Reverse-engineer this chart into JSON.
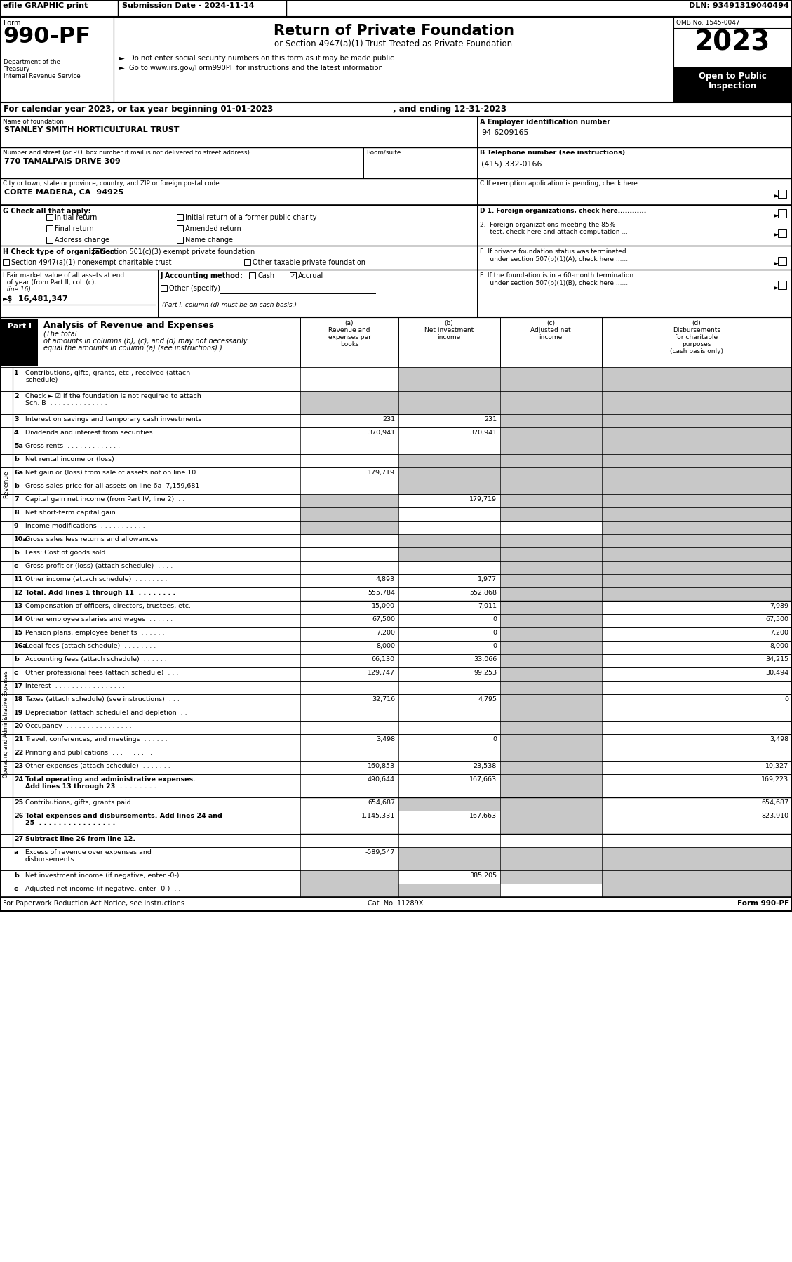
{
  "efile": "efile GRAPHIC print",
  "submission": "Submission Date - 2024-11-14",
  "dln": "DLN: 93491319040494",
  "form_number": "990-PF",
  "dept_lines": [
    "Department of the",
    "Treasury",
    "Internal Revenue Service"
  ],
  "title": "Return of Private Foundation",
  "subtitle": "or Section 4947(a)(1) Trust Treated as Private Foundation",
  "bullet1": "►  Do not enter social security numbers on this form as it may be made public.",
  "bullet2": "►  Go to www.irs.gov/Form990PF for instructions and the latest information.",
  "omb": "OMB No. 1545-0047",
  "year": "2023",
  "open_public": "Open to Public",
  "inspection": "Inspection",
  "cal_year": "For calendar year 2023, or tax year beginning 01-01-2023",
  "cal_end": ", and ending 12-31-2023",
  "name_label": "Name of foundation",
  "name_value": "STANLEY SMITH HORTICULTURAL TRUST",
  "ein_label": "A Employer identification number",
  "ein_value": "94-6209165",
  "street_label": "Number and street (or P.O. box number if mail is not delivered to street address)",
  "street_value": "770 TAMALPAIS DRIVE 309",
  "room_label": "Room/suite",
  "phone_label": "B Telephone number (see instructions)",
  "phone_value": "(415) 332-0166",
  "city_label": "City or town, state or province, country, and ZIP or foreign postal code",
  "city_value": "CORTE MADERA, CA  94925",
  "c_label": "C If exemption application is pending, check here",
  "g_label": "G Check all that apply:",
  "g_col1": [
    "Initial return",
    "Final return",
    "Address change"
  ],
  "g_col2": [
    "Initial return of a former public charity",
    "Amended return",
    "Name change"
  ],
  "d1": "D 1. Foreign organizations, check here............",
  "d2a": "2.  Foreign organizations meeting the 85%",
  "d2b": "     test, check here and attach computation ...",
  "e1": "E  If private foundation status was terminated",
  "e2": "     under section 507(b)(1)(A), check here ......",
  "h_label": "H Check type of organization:",
  "h_check1": "Section 501(c)(3) exempt private foundation",
  "h_check2": "Section 4947(a)(1) nonexempt charitable trust",
  "h_check3": "Other taxable private foundation",
  "i1": "I Fair market value of all assets at end",
  "i2": "  of year (from Part II, col. (c),",
  "i3": "  line 16)",
  "i_arrow": "►$",
  "i_value": " 16,481,347",
  "j_label": "J Accounting method:",
  "j_cash": "Cash",
  "j_accrual": "Accrual",
  "j_other": "Other (specify)",
  "j_note": "(Part I, column (d) must be on cash basis.)",
  "f1": "F  If the foundation is in a 60-month termination",
  "f2": "     under section 507(b)(1)(B), check here ......",
  "part1_tag": "Part I",
  "part1_title": "Analysis of Revenue and Expenses",
  "part1_italic": "(The total of amounts in columns (b), (c), and (d) may not necessarily equal the amounts in column (a) (see instructions).)",
  "rows": [
    {
      "num": "1",
      "label": "Contributions, gifts, grants, etc., received (attach\nschedule)",
      "a": "",
      "b": "",
      "c": "",
      "d": "",
      "shade": [
        "b",
        "c",
        "d"
      ],
      "bold": false,
      "two_line": true
    },
    {
      "num": "2",
      "label": "Check ► ☑ if the foundation is not required to attach\nSch. B  . . . . . . . . . . . . . .",
      "a": "",
      "b": "",
      "c": "",
      "d": "",
      "shade": [
        "a",
        "b",
        "c",
        "d"
      ],
      "bold": false,
      "two_line": true
    },
    {
      "num": "3",
      "label": "Interest on savings and temporary cash investments",
      "a": "231",
      "b": "231",
      "c": "",
      "d": "",
      "shade": [
        "c",
        "d"
      ],
      "bold": false
    },
    {
      "num": "4",
      "label": "Dividends and interest from securities  . . .",
      "a": "370,941",
      "b": "370,941",
      "c": "",
      "d": "",
      "shade": [
        "c",
        "d"
      ],
      "bold": false
    },
    {
      "num": "5a",
      "label": "Gross rents  . . . . . . . . . . . . .",
      "a": "",
      "b": "",
      "c": "",
      "d": "",
      "shade": [
        "c",
        "d"
      ],
      "bold": false
    },
    {
      "num": "b",
      "label": "Net rental income or (loss)",
      "a": "",
      "b": "",
      "c": "",
      "d": "",
      "shade": [
        "b",
        "c",
        "d"
      ],
      "bold": false
    },
    {
      "num": "6a",
      "label": "Net gain or (loss) from sale of assets not on line 10",
      "a": "179,719",
      "b": "",
      "c": "",
      "d": "",
      "shade": [
        "b",
        "c",
        "d"
      ],
      "bold": false
    },
    {
      "num": "b",
      "label": "Gross sales price for all assets on line 6a  7,159,681",
      "a": "",
      "b": "",
      "c": "",
      "d": "",
      "shade": [
        "b",
        "c",
        "d"
      ],
      "bold": false
    },
    {
      "num": "7",
      "label": "Capital gain net income (from Part IV, line 2)  . .",
      "a": "",
      "b": "179,719",
      "c": "",
      "d": "",
      "shade": [
        "a",
        "c",
        "d"
      ],
      "bold": false
    },
    {
      "num": "8",
      "label": "Net short-term capital gain  . . . . . . . . . .",
      "a": "",
      "b": "",
      "c": "",
      "d": "",
      "shade": [
        "a",
        "c",
        "d"
      ],
      "bold": false
    },
    {
      "num": "9",
      "label": "Income modifications  . . . . . . . . . . .",
      "a": "",
      "b": "",
      "c": "",
      "d": "",
      "shade": [
        "a",
        "d"
      ],
      "bold": false
    },
    {
      "num": "10a",
      "label": "Gross sales less returns and allowances",
      "a": "",
      "b": "",
      "c": "",
      "d": "",
      "shade": [
        "b",
        "c",
        "d"
      ],
      "bold": false
    },
    {
      "num": "b",
      "label": "Less: Cost of goods sold  . . . .",
      "a": "",
      "b": "",
      "c": "",
      "d": "",
      "shade": [
        "b",
        "c",
        "d"
      ],
      "bold": false
    },
    {
      "num": "c",
      "label": "Gross profit or (loss) (attach schedule)  . . . .",
      "a": "",
      "b": "",
      "c": "",
      "d": "",
      "shade": [
        "c",
        "d"
      ],
      "bold": false
    },
    {
      "num": "11",
      "label": "Other income (attach schedule)  . . . . . . . .",
      "a": "4,893",
      "b": "1,977",
      "c": "",
      "d": "",
      "shade": [
        "c",
        "d"
      ],
      "bold": false
    },
    {
      "num": "12",
      "label": "Total. Add lines 1 through 11  . . . . . . . .",
      "a": "555,784",
      "b": "552,868",
      "c": "",
      "d": "",
      "shade": [
        "c",
        "d"
      ],
      "bold": true
    },
    {
      "num": "13",
      "label": "Compensation of officers, directors, trustees, etc.",
      "a": "15,000",
      "b": "7,011",
      "c": "",
      "d": "7,989",
      "shade": [
        "c"
      ],
      "bold": false
    },
    {
      "num": "14",
      "label": "Other employee salaries and wages  . . . . . .",
      "a": "67,500",
      "b": "0",
      "c": "",
      "d": "67,500",
      "shade": [
        "c"
      ],
      "bold": false
    },
    {
      "num": "15",
      "label": "Pension plans, employee benefits  . . . . . .",
      "a": "7,200",
      "b": "0",
      "c": "",
      "d": "7,200",
      "shade": [
        "c"
      ],
      "bold": false
    },
    {
      "num": "16a",
      "label": "Legal fees (attach schedule)  . . . . . . . .",
      "a": "8,000",
      "b": "0",
      "c": "",
      "d": "8,000",
      "shade": [
        "c"
      ],
      "bold": false
    },
    {
      "num": "b",
      "label": "Accounting fees (attach schedule)  . . . . . .",
      "a": "66,130",
      "b": "33,066",
      "c": "",
      "d": "34,215",
      "shade": [
        "c"
      ],
      "bold": false
    },
    {
      "num": "c",
      "label": "Other professional fees (attach schedule)  . . .",
      "a": "129,747",
      "b": "99,253",
      "c": "",
      "d": "30,494",
      "shade": [
        "c"
      ],
      "bold": false
    },
    {
      "num": "17",
      "label": "Interest  . . . . . . . . . . . . . . . . .",
      "a": "",
      "b": "",
      "c": "",
      "d": "",
      "shade": [
        "c"
      ],
      "bold": false
    },
    {
      "num": "18",
      "label": "Taxes (attach schedule) (see instructions)  . . .",
      "a": "32,716",
      "b": "4,795",
      "c": "",
      "d": "0",
      "shade": [
        "c"
      ],
      "bold": false
    },
    {
      "num": "19",
      "label": "Depreciation (attach schedule) and depletion  . .",
      "a": "",
      "b": "",
      "c": "",
      "d": "",
      "shade": [
        "c"
      ],
      "bold": false
    },
    {
      "num": "20",
      "label": "Occupancy  . . . . . . . . . . . . . . . .",
      "a": "",
      "b": "",
      "c": "",
      "d": "",
      "shade": [
        "c"
      ],
      "bold": false
    },
    {
      "num": "21",
      "label": "Travel, conferences, and meetings  . . . . . .",
      "a": "3,498",
      "b": "0",
      "c": "",
      "d": "3,498",
      "shade": [
        "c"
      ],
      "bold": false
    },
    {
      "num": "22",
      "label": "Printing and publications  . . . . . . . . . .",
      "a": "",
      "b": "",
      "c": "",
      "d": "",
      "shade": [
        "c"
      ],
      "bold": false
    },
    {
      "num": "23",
      "label": "Other expenses (attach schedule)  . . . . . . .",
      "a": "160,853",
      "b": "23,538",
      "c": "",
      "d": "10,327",
      "shade": [
        "c"
      ],
      "bold": false
    },
    {
      "num": "24",
      "label": "Total operating and administrative expenses.\nAdd lines 13 through 23  . . . . . . . .",
      "a": "490,644",
      "b": "167,663",
      "c": "",
      "d": "169,223",
      "shade": [
        "c"
      ],
      "bold": true,
      "two_line": true
    },
    {
      "num": "25",
      "label": "Contributions, gifts, grants paid  . . . . . . .",
      "a": "654,687",
      "b": "",
      "c": "",
      "d": "654,687",
      "shade": [
        "b",
        "c"
      ],
      "bold": false
    },
    {
      "num": "26",
      "label": "Total expenses and disbursements. Add lines 24 and\n25  . . . . . . . . . . . . . . . .",
      "a": "1,145,331",
      "b": "167,663",
      "c": "",
      "d": "823,910",
      "shade": [
        "c"
      ],
      "bold": true,
      "two_line": true
    },
    {
      "num": "27",
      "label": "Subtract line 26 from line 12.",
      "a": "",
      "b": "",
      "c": "",
      "d": "",
      "shade": [],
      "bold": true,
      "header_only": true
    },
    {
      "num": "a",
      "label": "Excess of revenue over expenses and\ndisbursements",
      "a": "-589,547",
      "b": "",
      "c": "",
      "d": "",
      "shade": [
        "b",
        "c",
        "d"
      ],
      "bold": false,
      "two_line": true
    },
    {
      "num": "b",
      "label": "Net investment income (if negative, enter -0-)",
      "a": "",
      "b": "385,205",
      "c": "",
      "d": "",
      "shade": [
        "a",
        "c",
        "d"
      ],
      "bold": false
    },
    {
      "num": "c",
      "label": "Adjusted net income (if negative, enter -0-)  . .",
      "a": "",
      "b": "",
      "c": "",
      "d": "",
      "shade": [
        "a",
        "b",
        "d"
      ],
      "bold": false
    }
  ],
  "revenue_rows_count": 16,
  "footer_left": "For Paperwork Reduction Act Notice, see instructions.",
  "footer_cat": "Cat. No. 11289X",
  "footer_right": "Form 990-PF"
}
